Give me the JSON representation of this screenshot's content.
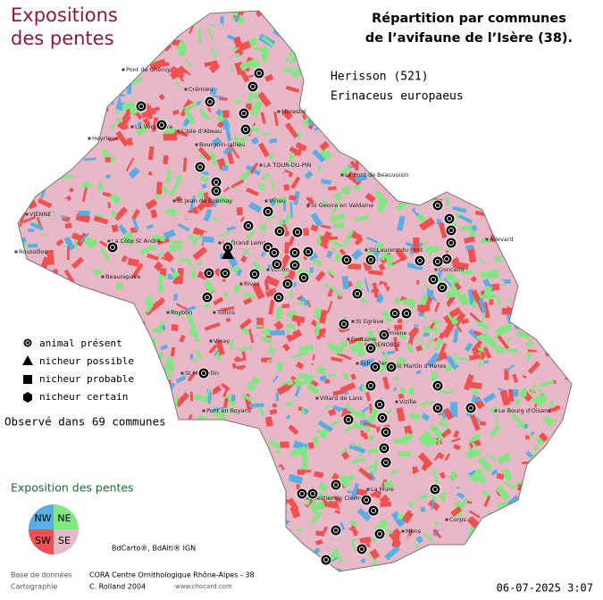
{
  "header": {
    "title_lines": [
      "Expositions",
      "des pentes"
    ],
    "subtitle_lines": [
      "Répartition par communes",
      "de l’avifaune de l’Isère (38)."
    ]
  },
  "species": {
    "common": "Herisson  (521)",
    "latin": "Erinaceus europaeus"
  },
  "legend": {
    "items": [
      "animal présent",
      "nicheur possible",
      "nicheur probable",
      "nicheur certain"
    ],
    "observed": "Observé dans 69 communes"
  },
  "exposure": {
    "title": "Exposition des pentes",
    "quadrants": [
      "NW",
      "NE",
      "SW",
      "SE"
    ]
  },
  "credits": {
    "source": "BdCarto®, BdAlti® IGN",
    "db_label": "Base de données",
    "db_value": "CORA Centre Ornithologique Rhône-Alpes - 38",
    "carto_label": "Cartographie",
    "carto_value": "C. Rolland 2004",
    "site": "www.chocard.com",
    "date": "06-07-2025 3:07"
  },
  "towns": [
    "Pont de Chéruy",
    "Crémieu",
    "Morestel",
    "Heyrieux",
    "La Verpillière",
    "L'Isle d'Abeau",
    "Bourgoin-Jallieu",
    "LA TOUR-DU-PIN",
    "Le Pont de Beauvoisin",
    "VIENNE",
    "St Jean de Bournay",
    "Virieu",
    "St Geoire en Valdaine",
    "Roussillon",
    "Beaurepaire",
    "La Côte St André",
    "Le Grand Lemps",
    "Rives",
    "Voiron",
    "Tullins",
    "St Laurent du Pont",
    "Allevard",
    "Goncelin",
    "Roybon",
    "Vinay",
    "St Egrève",
    "Domène",
    "GRENOBLE",
    "Fontaine",
    "Echirolles",
    "Vizille",
    "Villard de Lans",
    "St Marcellin",
    "Pont en Royans",
    "Le Bourg d'Oisans",
    "Monestier de Clermont",
    "La Mure",
    "Corps",
    "Mens",
    "St Martin d'Hères"
  ]
}
